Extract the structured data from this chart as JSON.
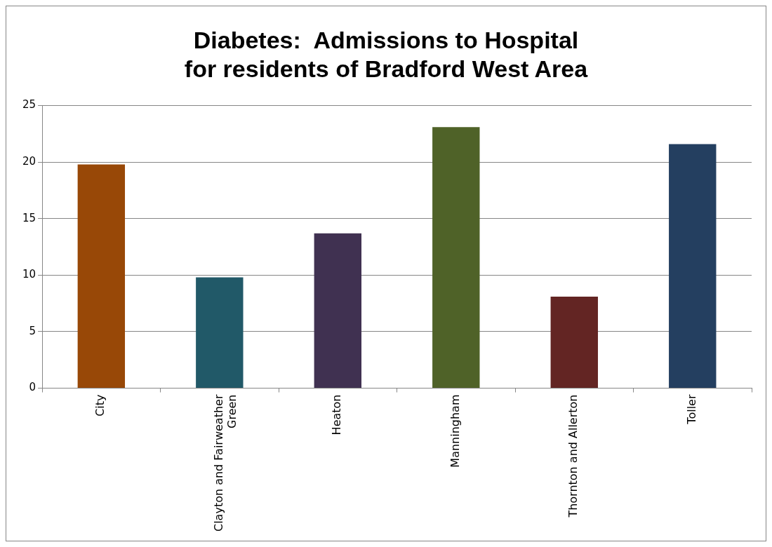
{
  "chart_data": {
    "type": "bar",
    "title": "Diabetes:  Admissions to Hospital\nfor residents of Bradford West Area",
    "categories": [
      "City",
      "Clayton and Fairweather Green",
      "Heaton",
      "Manningham",
      "Thornton and Allerton",
      "Toller"
    ],
    "values": [
      19.8,
      9.8,
      13.7,
      23.1,
      8.1,
      21.6
    ],
    "colors": [
      "#984807",
      "#215968",
      "#403151",
      "#4f6228",
      "#632523",
      "#243f60"
    ],
    "ylim": [
      0,
      25
    ],
    "yticks": [
      0,
      5,
      10,
      15,
      20,
      25
    ],
    "grid": "y",
    "legend": false
  }
}
